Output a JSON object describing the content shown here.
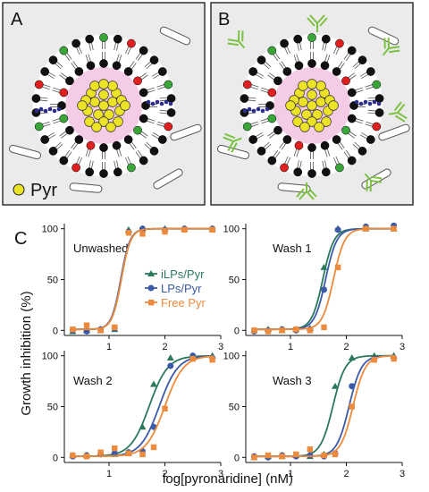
{
  "panels": {
    "a_label": "A",
    "b_label": "B",
    "c_label": "C",
    "legend_pyr": "Pyr"
  },
  "colors": {
    "panel_bg": "#ebebeb",
    "core_fill": "#f5cce6",
    "drug": "#ece326",
    "head_black": "#111111",
    "head_red": "#e02020",
    "head_green": "#3aa63a",
    "linker": "#2c2c8c",
    "antibody": "#7cc242",
    "iLPs": "#2a7a5a",
    "LPs": "#3b5aa8",
    "Free": "#ee8a3c"
  },
  "chart_data": [
    {
      "type": "line",
      "title": "Unwashed",
      "xlabel": "log[pyronaridine] (nM)",
      "ylabel": "Growth inhibition (%)",
      "xlim": [
        0.2,
        3.0
      ],
      "ylim": [
        -5,
        105
      ],
      "xticks": [
        1,
        2,
        3
      ],
      "yticks": [
        0,
        50,
        100
      ],
      "legend": {
        "position": "center",
        "entries": [
          "iLPs/Pyr",
          "LPs/Pyr",
          "Free Pyr"
        ]
      },
      "series": [
        {
          "name": "iLPs/Pyr",
          "color": "#2a7a5a",
          "marker": "triangle",
          "ec50": 1.22,
          "slope": 12,
          "points": [
            {
              "x": 0.35,
              "y": -1
            },
            {
              "x": 0.6,
              "y": 0
            },
            {
              "x": 0.85,
              "y": 0
            },
            {
              "x": 1.1,
              "y": 1
            },
            {
              "x": 1.35,
              "y": 99
            },
            {
              "x": 1.6,
              "y": 100
            },
            {
              "x": 2.0,
              "y": 100
            },
            {
              "x": 2.35,
              "y": 100
            },
            {
              "x": 2.85,
              "y": 100
            }
          ]
        },
        {
          "name": "LPs/Pyr",
          "color": "#3b5aa8",
          "marker": "circle",
          "ec50": 1.21,
          "slope": 12,
          "points": [
            {
              "x": 0.35,
              "y": 0
            },
            {
              "x": 0.6,
              "y": -1
            },
            {
              "x": 0.85,
              "y": 1
            },
            {
              "x": 1.1,
              "y": 2
            },
            {
              "x": 1.35,
              "y": 97
            },
            {
              "x": 1.6,
              "y": 100
            },
            {
              "x": 2.0,
              "y": 99
            },
            {
              "x": 2.35,
              "y": 100
            },
            {
              "x": 2.85,
              "y": 100
            }
          ]
        },
        {
          "name": "Free Pyr",
          "color": "#ee8a3c",
          "marker": "square",
          "ec50": 1.22,
          "slope": 12,
          "points": [
            {
              "x": 0.35,
              "y": 1
            },
            {
              "x": 0.6,
              "y": 5
            },
            {
              "x": 0.85,
              "y": 0
            },
            {
              "x": 1.1,
              "y": 3
            },
            {
              "x": 1.35,
              "y": 96
            },
            {
              "x": 1.6,
              "y": 95
            },
            {
              "x": 2.0,
              "y": 97
            },
            {
              "x": 2.35,
              "y": 99
            },
            {
              "x": 2.85,
              "y": 99
            }
          ]
        }
      ]
    },
    {
      "type": "line",
      "title": "Wash 1",
      "xlabel": "log[pyronaridine] (nM)",
      "ylabel": "Growth inhibition (%)",
      "xlim": [
        0.2,
        3.0
      ],
      "ylim": [
        -5,
        105
      ],
      "xticks": [
        1,
        2,
        3
      ],
      "yticks": [
        0,
        50,
        100
      ],
      "series": [
        {
          "name": "iLPs/Pyr",
          "color": "#2a7a5a",
          "marker": "triangle",
          "ec50": 1.58,
          "slope": 10,
          "points": [
            {
              "x": 0.35,
              "y": 0
            },
            {
              "x": 0.6,
              "y": 1
            },
            {
              "x": 0.85,
              "y": 0
            },
            {
              "x": 1.1,
              "y": 1
            },
            {
              "x": 1.35,
              "y": 2
            },
            {
              "x": 1.6,
              "y": 62
            },
            {
              "x": 1.85,
              "y": 100
            },
            {
              "x": 2.35,
              "y": 100
            },
            {
              "x": 2.85,
              "y": 100
            }
          ]
        },
        {
          "name": "LPs/Pyr",
          "color": "#3b5aa8",
          "marker": "circle",
          "ec50": 1.63,
          "slope": 10,
          "points": [
            {
              "x": 0.35,
              "y": -1
            },
            {
              "x": 0.6,
              "y": 0
            },
            {
              "x": 0.85,
              "y": 1
            },
            {
              "x": 1.1,
              "y": 0
            },
            {
              "x": 1.35,
              "y": 1
            },
            {
              "x": 1.6,
              "y": 40
            },
            {
              "x": 1.85,
              "y": 99
            },
            {
              "x": 2.35,
              "y": 102
            },
            {
              "x": 2.85,
              "y": 103
            }
          ]
        },
        {
          "name": "Free Pyr",
          "color": "#ee8a3c",
          "marker": "square",
          "ec50": 1.77,
          "slope": 10,
          "points": [
            {
              "x": 0.35,
              "y": 0
            },
            {
              "x": 0.6,
              "y": -1
            },
            {
              "x": 0.85,
              "y": 0
            },
            {
              "x": 1.1,
              "y": 1
            },
            {
              "x": 1.35,
              "y": 0
            },
            {
              "x": 1.6,
              "y": 3
            },
            {
              "x": 1.85,
              "y": 62
            },
            {
              "x": 2.35,
              "y": 100
            },
            {
              "x": 2.85,
              "y": 100
            }
          ]
        }
      ]
    },
    {
      "type": "line",
      "title": "Wash 2",
      "xlabel": "log[pyronaridine] (nM)",
      "ylabel": "Growth inhibition (%)",
      "xlim": [
        0.2,
        3.0
      ],
      "ylim": [
        -5,
        105
      ],
      "xticks": [
        1,
        2,
        3
      ],
      "yticks": [
        0,
        50,
        100
      ],
      "series": [
        {
          "name": "iLPs/Pyr",
          "color": "#2a7a5a",
          "marker": "triangle",
          "ec50": 1.72,
          "slope": 6,
          "points": [
            {
              "x": 0.35,
              "y": 2
            },
            {
              "x": 0.6,
              "y": 2
            },
            {
              "x": 0.85,
              "y": 3
            },
            {
              "x": 1.1,
              "y": 3
            },
            {
              "x": 1.35,
              "y": 4
            },
            {
              "x": 1.6,
              "y": 30
            },
            {
              "x": 1.8,
              "y": 72
            },
            {
              "x": 2.1,
              "y": 98
            },
            {
              "x": 2.5,
              "y": 100
            },
            {
              "x": 2.85,
              "y": 100
            }
          ]
        },
        {
          "name": "LPs/Pyr",
          "color": "#3b5aa8",
          "marker": "circle",
          "ec50": 1.9,
          "slope": 6,
          "points": [
            {
              "x": 0.35,
              "y": 1
            },
            {
              "x": 0.6,
              "y": 2
            },
            {
              "x": 0.85,
              "y": 3
            },
            {
              "x": 1.1,
              "y": 4
            },
            {
              "x": 1.35,
              "y": 5
            },
            {
              "x": 1.6,
              "y": 6
            },
            {
              "x": 1.8,
              "y": 30
            },
            {
              "x": 2.1,
              "y": 90
            },
            {
              "x": 2.5,
              "y": 100
            },
            {
              "x": 2.85,
              "y": 98
            }
          ]
        },
        {
          "name": "Free Pyr",
          "color": "#ee8a3c",
          "marker": "square",
          "ec50": 2.0,
          "slope": 6,
          "points": [
            {
              "x": 0.35,
              "y": 2
            },
            {
              "x": 0.6,
              "y": 1
            },
            {
              "x": 0.85,
              "y": 5
            },
            {
              "x": 1.1,
              "y": 9
            },
            {
              "x": 1.35,
              "y": 4
            },
            {
              "x": 1.6,
              "y": 3
            },
            {
              "x": 1.8,
              "y": 10
            },
            {
              "x": 2.0,
              "y": 48
            },
            {
              "x": 2.5,
              "y": 97
            },
            {
              "x": 2.85,
              "y": 96
            }
          ]
        }
      ]
    },
    {
      "type": "line",
      "title": "Wash 3",
      "xlabel": "log[pyronaridine] (nM)",
      "ylabel": "Growth inhibition (%)",
      "xlim": [
        0.2,
        3.0
      ],
      "ylim": [
        -5,
        105
      ],
      "xticks": [
        1,
        2,
        3
      ],
      "yticks": [
        0,
        50,
        100
      ],
      "series": [
        {
          "name": "iLPs/Pyr",
          "color": "#2a7a5a",
          "marker": "triangle",
          "ec50": 1.76,
          "slope": 9,
          "points": [
            {
              "x": 0.35,
              "y": 0
            },
            {
              "x": 0.6,
              "y": 1
            },
            {
              "x": 0.85,
              "y": 1
            },
            {
              "x": 1.1,
              "y": 2
            },
            {
              "x": 1.35,
              "y": 1
            },
            {
              "x": 1.6,
              "y": 3
            },
            {
              "x": 1.8,
              "y": 70
            },
            {
              "x": 2.1,
              "y": 98
            },
            {
              "x": 2.5,
              "y": 100
            },
            {
              "x": 2.85,
              "y": 100
            }
          ]
        },
        {
          "name": "LPs/Pyr",
          "color": "#3b5aa8",
          "marker": "circle",
          "ec50": 2.05,
          "slope": 9,
          "points": [
            {
              "x": 0.35,
              "y": 1
            },
            {
              "x": 0.6,
              "y": 0
            },
            {
              "x": 0.85,
              "y": 2
            },
            {
              "x": 1.1,
              "y": 1
            },
            {
              "x": 1.35,
              "y": 2
            },
            {
              "x": 1.6,
              "y": 1
            },
            {
              "x": 1.8,
              "y": 4
            },
            {
              "x": 2.1,
              "y": 70
            },
            {
              "x": 2.5,
              "y": 97
            },
            {
              "x": 2.85,
              "y": 98
            }
          ]
        },
        {
          "name": "Free Pyr",
          "color": "#ee8a3c",
          "marker": "square",
          "ec50": 2.12,
          "slope": 9,
          "points": [
            {
              "x": 0.35,
              "y": 0
            },
            {
              "x": 0.6,
              "y": 2
            },
            {
              "x": 0.85,
              "y": 1
            },
            {
              "x": 1.1,
              "y": 3
            },
            {
              "x": 1.35,
              "y": 8
            },
            {
              "x": 1.6,
              "y": 2
            },
            {
              "x": 1.8,
              "y": 3
            },
            {
              "x": 2.1,
              "y": 50
            },
            {
              "x": 2.5,
              "y": 96
            },
            {
              "x": 2.85,
              "y": 97
            }
          ]
        }
      ]
    }
  ]
}
